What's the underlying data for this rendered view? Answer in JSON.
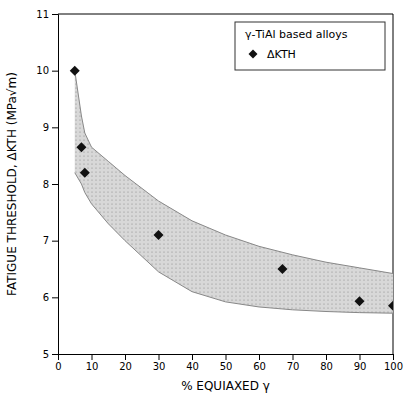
{
  "chart_data": {
    "type": "scatter",
    "title": "",
    "xlabel": "% EQUIAXED γ",
    "ylabel": "FATIGUE THRESHOLD, ΔKTH (MPa√m)",
    "xlim": [
      0,
      100
    ],
    "ylim": [
      5,
      11
    ],
    "xticks": [
      0,
      10,
      20,
      30,
      40,
      50,
      60,
      70,
      80,
      90,
      100
    ],
    "yticks": [
      5,
      6,
      7,
      8,
      9,
      10,
      11
    ],
    "series": [
      {
        "name": "ΔKTH",
        "type": "scatter",
        "marker": "diamond",
        "color": "#111111",
        "x": [
          5,
          7,
          8,
          30,
          67,
          90,
          100
        ],
        "values": [
          10.0,
          8.65,
          8.2,
          7.1,
          6.5,
          5.93,
          5.85
        ]
      }
    ],
    "band": {
      "x": [
        5,
        7,
        8,
        10,
        15,
        20,
        30,
        40,
        50,
        60,
        70,
        80,
        90,
        100
      ],
      "upper": [
        10.0,
        9.2,
        8.9,
        8.65,
        8.4,
        8.15,
        7.7,
        7.35,
        7.1,
        6.9,
        6.75,
        6.62,
        6.52,
        6.42
      ],
      "lower": [
        8.2,
        8.0,
        7.85,
        7.65,
        7.3,
        7.0,
        6.45,
        6.1,
        5.92,
        5.83,
        5.78,
        5.75,
        5.73,
        5.72
      ],
      "color": "#d8d8d8"
    },
    "legend_title": "γ-TiAl based alloys",
    "legend": "upper right",
    "grid": false
  }
}
